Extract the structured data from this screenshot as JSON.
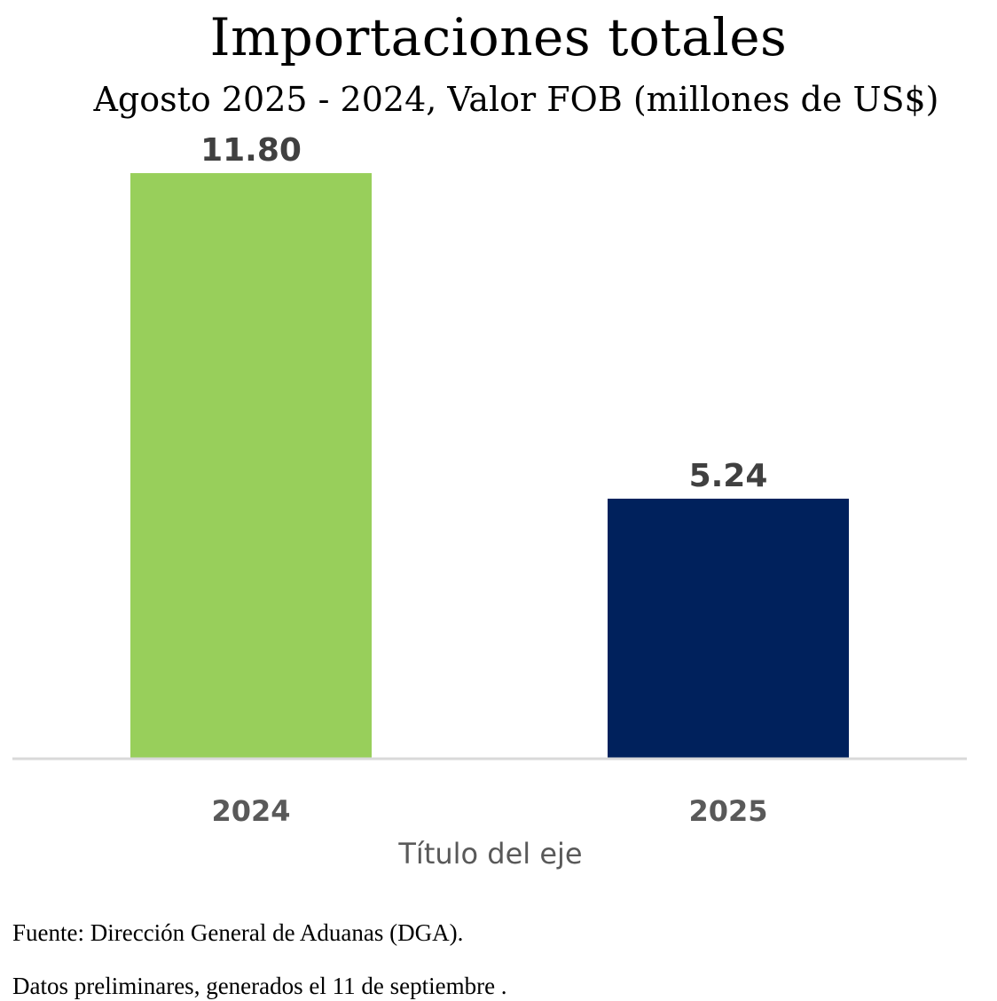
{
  "chart_data": {
    "type": "bar",
    "title": "Importaciones totales",
    "subtitle": "Agosto 2025 - 2024, Valor FOB (millones de US$)",
    "categories": [
      "2024",
      "2025"
    ],
    "values": [
      11.8,
      5.24
    ],
    "data_labels": [
      "11.80",
      "5.24"
    ],
    "bar_colors": [
      "#98cf5b",
      "#00215c"
    ],
    "xlabel": "Título del eje",
    "ylabel": "",
    "ylim": [
      0,
      13.5
    ],
    "grid": false,
    "legend": "none"
  },
  "footer": {
    "source": "Fuente: Dirección General de Aduanas (DGA).",
    "note": "Datos preliminares, generados el 11 de septiembre ."
  },
  "colors": {
    "axis_line": "#d9d9d9",
    "data_label": "#404040",
    "tick_label": "#595959"
  }
}
